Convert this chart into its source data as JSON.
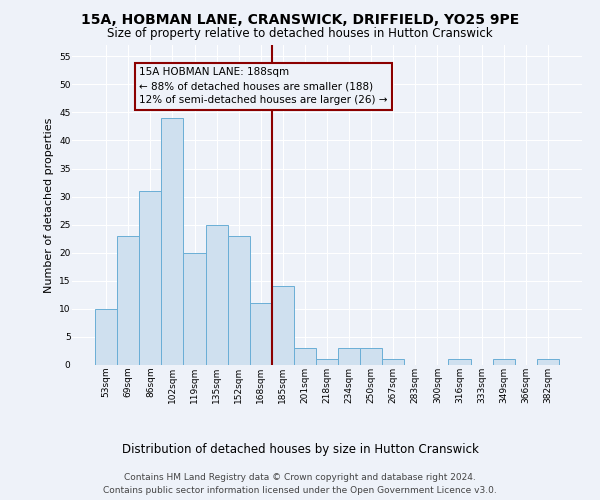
{
  "title": "15A, HOBMAN LANE, CRANSWICK, DRIFFIELD, YO25 9PE",
  "subtitle": "Size of property relative to detached houses in Hutton Cranswick",
  "xlabel": "Distribution of detached houses by size in Hutton Cranswick",
  "ylabel": "Number of detached properties",
  "bin_labels": [
    "53sqm",
    "69sqm",
    "86sqm",
    "102sqm",
    "119sqm",
    "135sqm",
    "152sqm",
    "168sqm",
    "185sqm",
    "201sqm",
    "218sqm",
    "234sqm",
    "250sqm",
    "267sqm",
    "283sqm",
    "300sqm",
    "316sqm",
    "333sqm",
    "349sqm",
    "366sqm",
    "382sqm"
  ],
  "bar_values": [
    10,
    23,
    31,
    44,
    20,
    25,
    23,
    11,
    14,
    3,
    1,
    3,
    3,
    1,
    0,
    0,
    1,
    0,
    1,
    0,
    1
  ],
  "bar_color": "#cfe0ef",
  "bar_edge_color": "#6aaed6",
  "vline_color": "#8b0000",
  "annotation_text": "15A HOBMAN LANE: 188sqm\n← 88% of detached houses are smaller (188)\n12% of semi-detached houses are larger (26) →",
  "annotation_box_color": "#8b0000",
  "ylim": [
    0,
    57
  ],
  "yticks": [
    0,
    5,
    10,
    15,
    20,
    25,
    30,
    35,
    40,
    45,
    50,
    55
  ],
  "footer_line1": "Contains HM Land Registry data © Crown copyright and database right 2024.",
  "footer_line2": "Contains public sector information licensed under the Open Government Licence v3.0.",
  "background_color": "#eef2f9",
  "grid_color": "#ffffff",
  "title_fontsize": 10,
  "subtitle_fontsize": 8.5,
  "ylabel_fontsize": 8,
  "xlabel_fontsize": 8.5,
  "tick_fontsize": 6.5,
  "annot_fontsize": 7.5,
  "footer_fontsize": 6.5,
  "vline_bar_index": 8
}
